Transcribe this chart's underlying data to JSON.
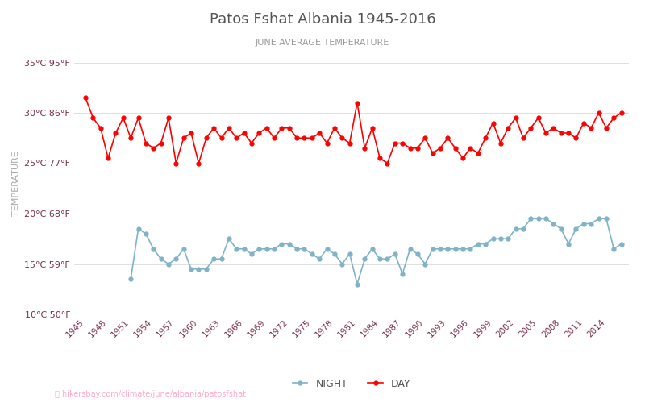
{
  "title": "Patos Fshat Albania 1945-2016",
  "subtitle": "JUNE AVERAGE TEMPERATURE",
  "ylabel": "TEMPERATURE",
  "watermark": "hikersbay.com/climate/june/albania/patosfshat",
  "legend_night": "NIGHT",
  "legend_day": "DAY",
  "years": [
    1945,
    1946,
    1947,
    1948,
    1949,
    1950,
    1951,
    1952,
    1953,
    1954,
    1955,
    1956,
    1957,
    1958,
    1959,
    1960,
    1961,
    1962,
    1963,
    1964,
    1965,
    1966,
    1967,
    1968,
    1969,
    1970,
    1971,
    1972,
    1973,
    1974,
    1975,
    1976,
    1977,
    1978,
    1979,
    1980,
    1981,
    1982,
    1983,
    1984,
    1985,
    1986,
    1987,
    1988,
    1989,
    1990,
    1991,
    1992,
    1993,
    1994,
    1995,
    1996,
    1997,
    1998,
    1999,
    2000,
    2001,
    2002,
    2003,
    2004,
    2005,
    2006,
    2007,
    2008,
    2009,
    2010,
    2011,
    2012,
    2013,
    2014,
    2015,
    2016
  ],
  "day_temps": [
    31.5,
    29.5,
    28.5,
    25.5,
    28.0,
    29.5,
    27.5,
    29.5,
    27.0,
    26.5,
    27.0,
    29.5,
    25.0,
    27.5,
    28.0,
    25.0,
    27.5,
    28.5,
    27.5,
    28.5,
    27.5,
    28.0,
    27.0,
    28.0,
    28.5,
    27.5,
    28.5,
    28.5,
    27.5,
    27.5,
    27.5,
    28.0,
    27.0,
    28.5,
    27.5,
    27.0,
    31.0,
    26.5,
    28.5,
    25.5,
    25.0,
    27.0,
    27.0,
    26.5,
    26.5,
    27.5,
    26.0,
    26.5,
    27.5,
    26.5,
    25.5,
    26.5,
    26.0,
    27.5,
    29.0,
    27.0,
    28.5,
    29.5,
    27.5,
    28.5,
    29.5,
    28.0,
    28.5,
    28.0,
    28.0,
    27.5,
    29.0,
    28.5,
    30.0,
    28.5,
    29.5,
    30.0
  ],
  "night_temps": [
    null,
    null,
    null,
    null,
    null,
    null,
    13.5,
    18.5,
    18.0,
    16.5,
    15.5,
    15.0,
    15.5,
    16.5,
    14.5,
    14.5,
    14.5,
    15.5,
    15.5,
    17.5,
    16.5,
    16.5,
    16.0,
    16.5,
    16.5,
    16.5,
    17.0,
    17.0,
    16.5,
    16.5,
    16.0,
    15.5,
    16.5,
    16.0,
    15.0,
    16.0,
    13.0,
    15.5,
    16.5,
    15.5,
    15.5,
    16.0,
    14.0,
    16.5,
    16.0,
    15.0,
    16.5,
    16.5,
    16.5,
    16.5,
    16.5,
    16.5,
    17.0,
    17.0,
    17.5,
    17.5,
    17.5,
    18.5,
    18.5,
    19.5,
    19.5,
    19.5,
    19.0,
    18.5,
    17.0,
    18.5,
    19.0,
    19.0,
    19.5,
    19.5,
    16.5,
    17.0
  ],
  "ylim_min": 10,
  "ylim_max": 36,
  "yticks_c": [
    10,
    15,
    20,
    25,
    30,
    35
  ],
  "yticks_f": [
    50,
    59,
    68,
    77,
    86,
    95
  ],
  "day_color": "#ff0000",
  "night_color": "#7fb3c8",
  "background_color": "#ffffff",
  "title_color": "#555555",
  "subtitle_color": "#999999",
  "axis_label_color": "#aaaaaa",
  "tick_color": "#7a3050",
  "grid_color": "#e0e0e0",
  "watermark_color": "#ffaacc"
}
